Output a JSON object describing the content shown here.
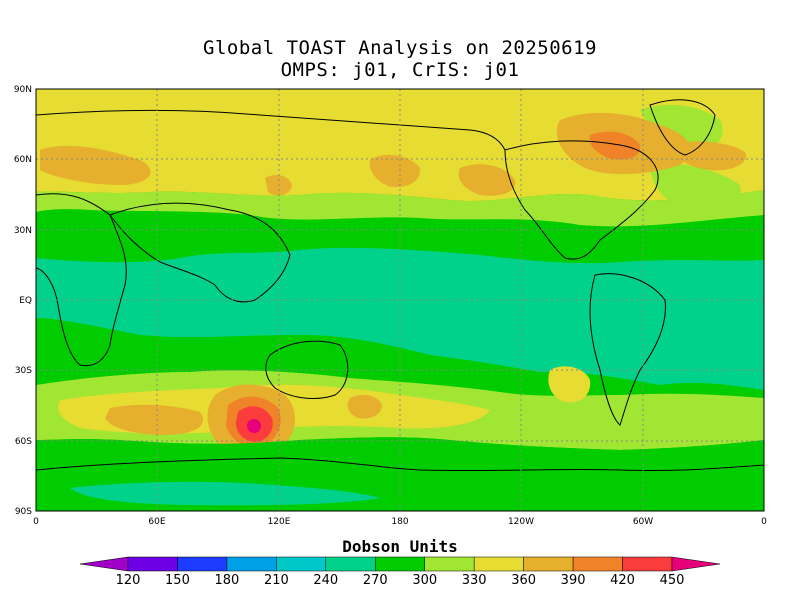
{
  "header": {
    "title": "Global TOAST Analysis on 20250619",
    "subtitle": "OMPS: j01, CrIS: j01"
  },
  "map": {
    "lat_labels": [
      "90N",
      "60N",
      "30N",
      "EQ",
      "30S",
      "60S",
      "90S"
    ],
    "lon_labels": [
      "0",
      "60E",
      "120E",
      "180",
      "120W",
      "60W",
      "0"
    ],
    "background_color": "#00cc00"
  },
  "colorbar": {
    "title": "Dobson Units",
    "levels": [
      "120",
      "150",
      "180",
      "210",
      "240",
      "270",
      "300",
      "330",
      "360",
      "390",
      "420",
      "450"
    ],
    "colors": [
      "#a000c8",
      "#6e00e6",
      "#1e3cff",
      "#00a0e6",
      "#00c8c8",
      "#00d28c",
      "#00cc00",
      "#a0e632",
      "#e6dc32",
      "#e6af2d",
      "#f08228",
      "#fa3c3c",
      "#e6007a"
    ]
  }
}
